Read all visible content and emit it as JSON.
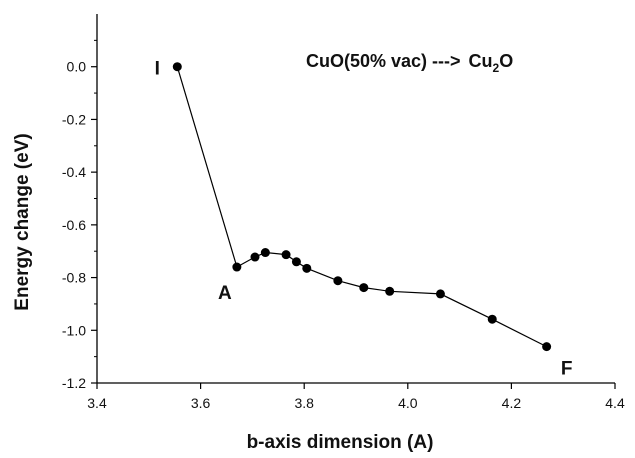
{
  "chart_data": {
    "type": "line",
    "title": "",
    "xlabel": "b-axis dimension (A)",
    "ylabel": "Energy change (eV)",
    "xlim": [
      3.4,
      4.4
    ],
    "ylim": [
      -1.2,
      0.2
    ],
    "xticks": [
      "3.4",
      "3.6",
      "3.8",
      "4.0",
      "4.2",
      "4.4"
    ],
    "yticks": [
      "-1.2",
      "-1.0",
      "-0.8",
      "-0.6",
      "-0.4",
      "-0.2",
      "0.0"
    ],
    "grid": false,
    "annotation": {
      "prefix": "CuO(50% vac)  ",
      "arrow": "--->",
      "product_base": "Cu",
      "product_sub": "2",
      "product_tail": "O"
    },
    "series": [
      {
        "x": [
          3.555,
          3.67,
          3.705,
          3.725,
          3.765,
          3.785,
          3.805,
          3.865,
          3.915,
          3.965,
          4.063,
          4.163,
          4.268
        ],
        "y": [
          0.0,
          -0.76,
          -0.722,
          -0.705,
          -0.713,
          -0.74,
          -0.765,
          -0.812,
          -0.838,
          -0.852,
          -0.862,
          -0.958,
          -1.062
        ]
      }
    ],
    "point_labels": [
      {
        "text": "I",
        "index": 0
      },
      {
        "text": "A",
        "index": 1
      },
      {
        "text": "F",
        "index": 12
      }
    ]
  }
}
